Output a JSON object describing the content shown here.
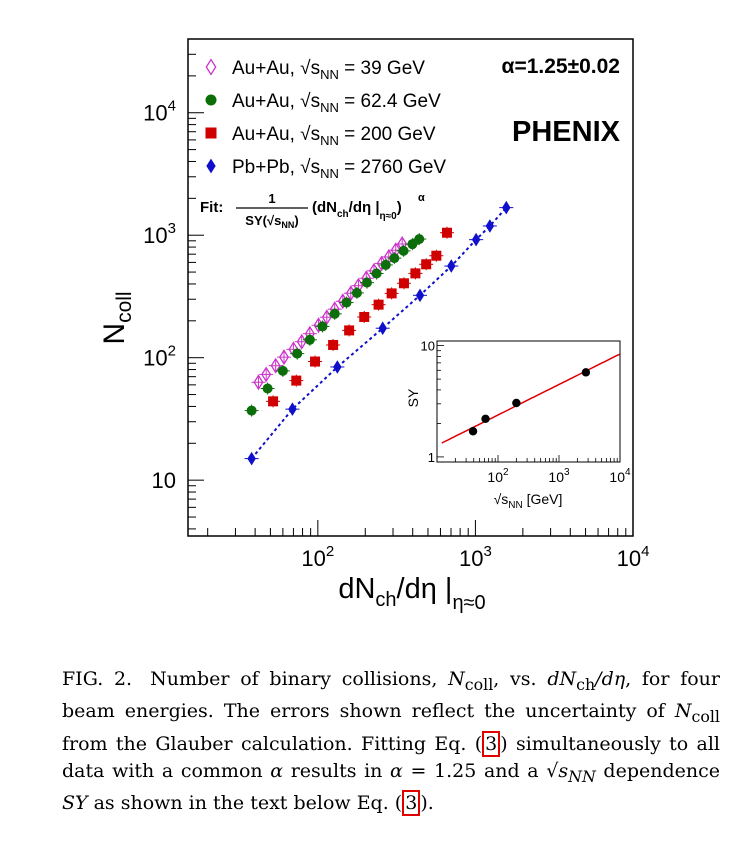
{
  "figure": {
    "main_chart": {
      "type": "scatter",
      "xlabel": "dN",
      "xlabel_sub": "ch",
      "xlabel_mid": "/dη |",
      "xlabel_sub2": "η≈0",
      "ylabel": "N",
      "ylabel_sub": "coll",
      "x_scale": "log",
      "y_scale": "log",
      "xlim": [
        15,
        10000
      ],
      "ylim": [
        3.5,
        40000
      ],
      "x_ticks": [
        {
          "value": 100,
          "base": "10",
          "exp": "2"
        },
        {
          "value": 1000,
          "base": "10",
          "exp": "3"
        },
        {
          "value": 10000,
          "base": "10",
          "exp": "4"
        }
      ],
      "y_ticks": [
        {
          "value": 10,
          "base": "10",
          "exp": ""
        },
        {
          "value": 100,
          "base": "10",
          "exp": "2"
        },
        {
          "value": 1000,
          "base": "10",
          "exp": "3"
        },
        {
          "value": 10000,
          "base": "10",
          "exp": "4"
        }
      ],
      "grid": false,
      "legend_position": "top-left",
      "series": [
        {
          "name_prefix": "Au+Au, ",
          "energy": " = 39 GeV",
          "marker": "open-diamond",
          "color": "#cc33cc",
          "x": [
            42,
            47,
            54,
            61,
            70,
            79,
            89,
            101,
            114,
            128,
            144,
            162,
            181,
            203,
            227,
            254,
            282,
            312,
            343
          ],
          "y": [
            63,
            73,
            86,
            101,
            117,
            135,
            157,
            184,
            214,
            249,
            289,
            336,
            387,
            445,
            512,
            588,
            665,
            755,
            848
          ]
        },
        {
          "name_prefix": "Au+Au, ",
          "energy": " = 62.4 GeV",
          "marker": "filled-circle",
          "color": "#0b6e0b",
          "x": [
            38,
            48,
            60,
            74,
            89,
            107,
            128,
            152,
            177,
            205,
            236,
            270,
            306,
            350,
            398,
            440
          ],
          "y": [
            37,
            56,
            78,
            108,
            140,
            180,
            228,
            282,
            338,
            410,
            487,
            572,
            650,
            745,
            845,
            930
          ]
        },
        {
          "name_prefix": "Au+Au, ",
          "energy": " = 200 GeV",
          "marker": "filled-square",
          "color": "#d00000",
          "x": [
            52,
            73,
            96,
            125,
            158,
            197,
            243,
            294,
            352,
            416,
            487,
            565,
            660
          ],
          "y": [
            44,
            65,
            93,
            127,
            167,
            215,
            271,
            335,
            405,
            488,
            579,
            680,
            1048
          ]
        },
        {
          "name_prefix": "Pb+Pb, ",
          "energy": " = 2760 GeV",
          "marker": "filled-diamond",
          "color": "#1010cc",
          "x": [
            38,
            69,
            133,
            258,
            445,
            703,
            1010,
            1235,
            1570
          ],
          "y": [
            15,
            38,
            84,
            174,
            323,
            560,
            920,
            1190,
            1680
          ]
        }
      ],
      "annotations": {
        "alpha": "α=1.25±0.02",
        "experiment": "PHENIX",
        "experiment_color": "#22bb22",
        "fit_label": "Fit:",
        "fit_num": "1",
        "fit_den": "SY(√s",
        "fit_den_sub": "NN",
        "fit_den_end": ")",
        "fit_body": "(dN",
        "fit_body_sub": "ch",
        "fit_body_mid": "/dη |",
        "fit_body_sub2": "η≈0",
        "fit_body_end": ")",
        "fit_exp": "α"
      },
      "legend_sqrt": "√s",
      "legend_sub": "NN"
    },
    "inset_chart": {
      "type": "scatter",
      "ylabel": "SY",
      "xlabel_sqrt": "√s",
      "xlabel_sub": "NN",
      "xlabel_unit": " [GeV]",
      "x_scale": "log",
      "y_scale": "log",
      "xlim": [
        10,
        10000
      ],
      "ylim": [
        0.9,
        11
      ],
      "x_ticks": [
        {
          "value": 100,
          "base": "10",
          "exp": "2"
        },
        {
          "value": 1000,
          "base": "10",
          "exp": "3"
        },
        {
          "value": 10000,
          "base": "10",
          "exp": "4"
        }
      ],
      "y_ticks": [
        {
          "value": 1,
          "base": "1",
          "exp": ""
        },
        {
          "value": 10,
          "base": "10",
          "exp": ""
        }
      ],
      "points_x": [
        39,
        62.4,
        200,
        2760
      ],
      "points_y": [
        1.7,
        2.2,
        3.05,
        5.75
      ],
      "fit_curve_color": "#e00000"
    }
  },
  "caption": {
    "label": "FIG. 2.",
    "text_1": "Number of binary collisions, ",
    "ncoll": "N",
    "ncoll_sub": "coll",
    "text_2": ", vs. ",
    "dndeta": "dN",
    "dndeta_sub": "ch",
    "dndeta_end": "/dη",
    "text_3": ", for four beam energies. The errors shown reflect the uncertainty of ",
    "text_4": " from the Glauber calculation. Fitting Eq. (",
    "ref": "3",
    "text_5": ") simultaneously to all data with a common ",
    "alpha": "α",
    "text_6": " results in ",
    "text_7": " = 1.25 and a ",
    "sqrt_s": "√s",
    "sqrt_sub": "NN",
    "text_8": " dependence ",
    "sy": "SY",
    "text_9": " as shown in the text below Eq. (",
    "text_10": ")."
  }
}
